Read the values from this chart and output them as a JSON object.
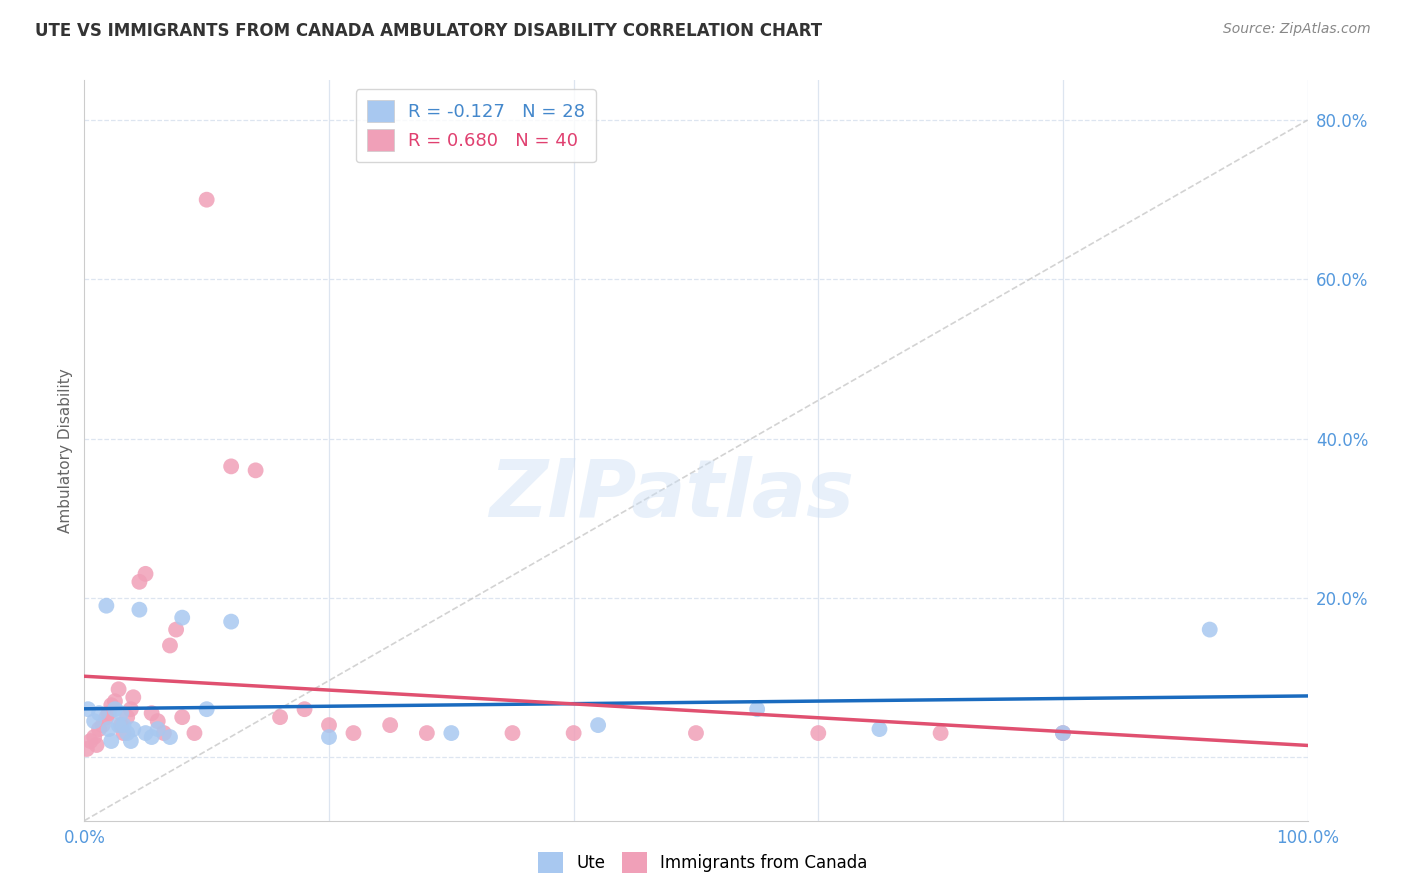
{
  "title": "UTE VS IMMIGRANTS FROM CANADA AMBULATORY DISABILITY CORRELATION CHART",
  "source": "Source: ZipAtlas.com",
  "ylabel": "Ambulatory Disability",
  "watermark": "ZIPatlas",
  "legend_ute": "Ute",
  "legend_imm": "Immigrants from Canada",
  "R_ute": -0.127,
  "N_ute": 28,
  "R_imm": 0.68,
  "N_imm": 40,
  "ute_color": "#a8c8f0",
  "imm_color": "#f0a0b8",
  "ute_line_color": "#1a6bbf",
  "imm_line_color": "#e05070",
  "diag_line_color": "#c8c8c8",
  "background_color": "#ffffff",
  "grid_color": "#dde5f0",
  "ytick_color": "#5599dd",
  "xtick_color": "#5599dd",
  "ute_x": [
    0.3,
    0.8,
    1.2,
    1.8,
    2.0,
    2.2,
    2.5,
    2.8,
    3.0,
    3.2,
    3.5,
    3.8,
    4.0,
    4.5,
    5.0,
    5.5,
    6.0,
    7.0,
    8.0,
    10.0,
    12.0,
    20.0,
    30.0,
    42.0,
    55.0,
    65.0,
    80.0,
    92.0
  ],
  "ute_y": [
    6.0,
    4.5,
    5.5,
    19.0,
    3.5,
    2.0,
    6.0,
    4.0,
    5.5,
    4.0,
    3.0,
    2.0,
    3.5,
    18.5,
    3.0,
    2.5,
    3.5,
    2.5,
    17.5,
    6.0,
    17.0,
    2.5,
    3.0,
    4.0,
    6.0,
    3.5,
    3.0,
    16.0
  ],
  "imm_x": [
    0.2,
    0.5,
    0.8,
    1.0,
    1.2,
    1.5,
    1.8,
    2.0,
    2.2,
    2.5,
    2.8,
    3.0,
    3.2,
    3.5,
    3.8,
    4.0,
    4.5,
    5.0,
    5.5,
    6.0,
    6.5,
    7.0,
    7.5,
    8.0,
    9.0,
    10.0,
    12.0,
    14.0,
    16.0,
    18.0,
    20.0,
    22.0,
    25.0,
    28.0,
    35.0,
    40.0,
    50.0,
    60.0,
    70.0,
    80.0
  ],
  "imm_y": [
    1.0,
    2.0,
    2.5,
    1.5,
    3.5,
    4.0,
    5.0,
    5.5,
    6.5,
    7.0,
    8.5,
    4.0,
    3.0,
    5.0,
    6.0,
    7.5,
    22.0,
    23.0,
    5.5,
    4.5,
    3.0,
    14.0,
    16.0,
    5.0,
    3.0,
    70.0,
    36.5,
    36.0,
    5.0,
    6.0,
    4.0,
    3.0,
    4.0,
    3.0,
    3.0,
    3.0,
    3.0,
    3.0,
    3.0,
    3.0
  ],
  "xlim": [
    0,
    100
  ],
  "ylim": [
    -8,
    85
  ],
  "yticks": [
    0,
    20,
    40,
    60,
    80
  ],
  "ytick_labels": [
    "",
    "20.0%",
    "40.0%",
    "60.0%",
    "80.0%"
  ],
  "xticks": [
    0,
    20,
    40,
    60,
    80,
    100
  ],
  "xtick_labels": [
    "0.0%",
    "",
    "",
    "",
    "",
    "100.0%"
  ]
}
